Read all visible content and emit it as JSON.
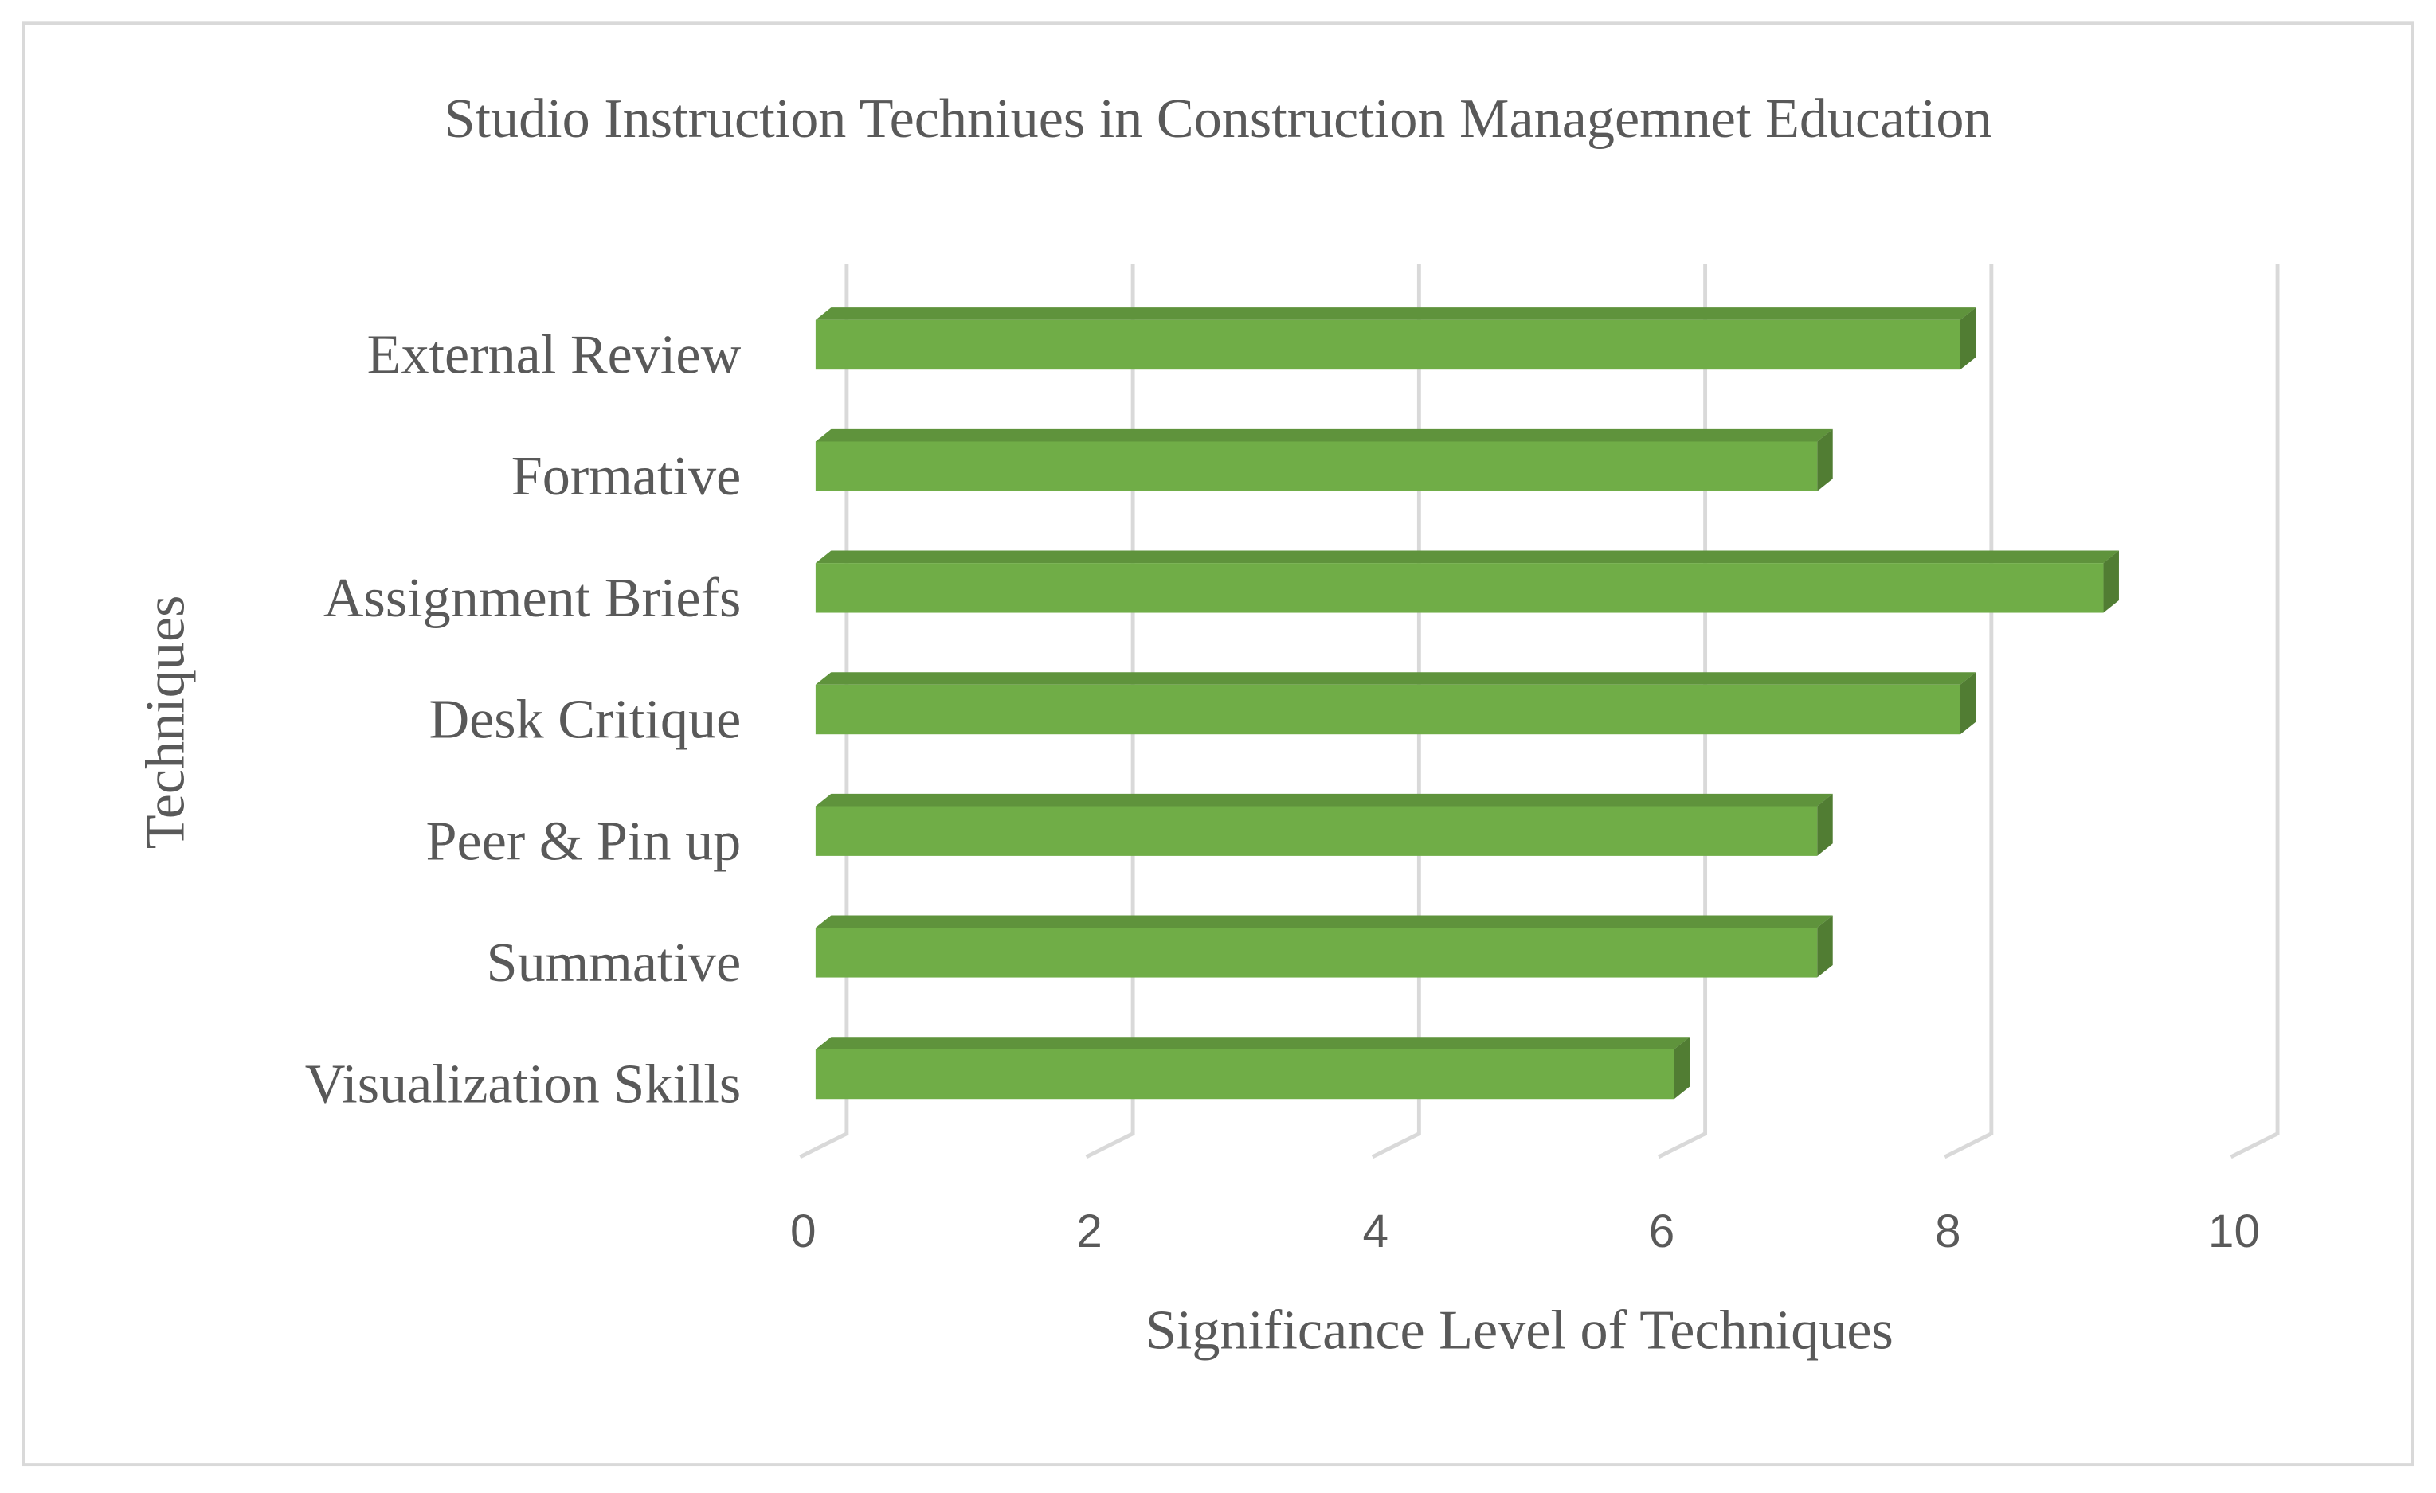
{
  "chart_data": {
    "type": "bar",
    "title": "Studio Instruction Techniues in Construction Managemnet Education",
    "x_label": "Significance Level of Techniques",
    "y_label": "Techniques",
    "categories": [
      "External Review",
      "Formative",
      "Assignment Briefs",
      "Desk Critique",
      "Peer & Pin up",
      "Summative",
      "Visualization Skills"
    ],
    "values": [
      8,
      7,
      9,
      8,
      7,
      7,
      6
    ],
    "color": "#70ad47",
    "xlim": [
      0,
      10
    ],
    "xticks": [
      0,
      2,
      4,
      6,
      8,
      10
    ],
    "grid": true
  }
}
